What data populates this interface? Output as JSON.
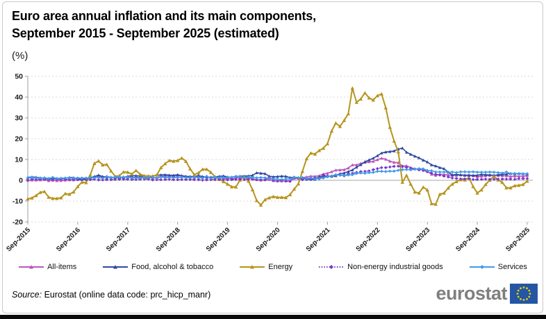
{
  "page": {
    "title_line1": "Euro area annual inflation and its main components,",
    "title_line2": "September 2015 - September 2025 (estimated)",
    "unit": "(%)"
  },
  "footer": {
    "source_prefix": "Source:",
    "source_text": " Eurostat (online data code: prc_hicp_manr)",
    "logo_text": "eurostat"
  },
  "chart_data": {
    "type": "line",
    "title": "Euro area annual inflation and its main components, September 2015 - September 2025 (estimated)",
    "xlabel": "",
    "ylabel": "(%)",
    "ylim": [
      -20,
      50
    ],
    "y_ticks": [
      50,
      40,
      30,
      20,
      10,
      0,
      -10,
      -20
    ],
    "x_tick_labels": [
      "Sep-2015",
      "Sep-2016",
      "Sep-2017",
      "Sep-2018",
      "Sep-2019",
      "Sep-2020",
      "Sep-2021",
      "Sep-2022",
      "Sep-2023",
      "Sep-2024",
      "Sep-2025"
    ],
    "x_frequency": "monthly",
    "x_start": "Sep-2015",
    "x_end": "Sep-2025",
    "grid": "horizontal dotted, solid zero line",
    "legend_position": "bottom",
    "colors": {
      "zero_line": "#c3c3c3",
      "gridline": "#dadada",
      "axis": "#9e9e9e",
      "tick_text": "#1a1a1a"
    },
    "series": [
      {
        "name": "All-items",
        "color": "#be54be",
        "marker": "triangle",
        "line_style": "solid",
        "values": [
          -0.1,
          0.1,
          0.1,
          0.2,
          0.3,
          -0.2,
          0.0,
          -0.2,
          -0.1,
          0.1,
          0.2,
          0.2,
          0.4,
          0.5,
          0.6,
          1.1,
          1.8,
          2.0,
          1.5,
          1.9,
          1.4,
          1.3,
          1.3,
          1.5,
          1.5,
          1.4,
          1.5,
          1.4,
          1.3,
          1.1,
          1.3,
          1.3,
          1.9,
          2.0,
          2.1,
          2.0,
          2.1,
          2.2,
          1.9,
          1.5,
          1.4,
          1.5,
          1.4,
          1.7,
          1.2,
          1.3,
          1.0,
          1.0,
          0.8,
          0.7,
          1.0,
          1.3,
          1.4,
          1.2,
          0.7,
          0.3,
          0.1,
          0.3,
          0.4,
          -0.2,
          -0.3,
          -0.3,
          -0.3,
          -0.3,
          0.9,
          0.9,
          1.3,
          1.6,
          2.0,
          1.9,
          2.2,
          3.0,
          3.4,
          4.1,
          4.9,
          5.0,
          5.1,
          5.9,
          7.4,
          7.4,
          8.1,
          8.6,
          8.9,
          9.1,
          9.9,
          10.6,
          10.1,
          9.2,
          8.6,
          8.5,
          6.9,
          7.0,
          6.1,
          5.5,
          5.3,
          5.2,
          4.3,
          2.9,
          2.4,
          2.9,
          2.8,
          2.6,
          2.4,
          2.4,
          2.6,
          2.5,
          2.6,
          2.2,
          1.7,
          2.0,
          2.2,
          2.4,
          2.5,
          2.3,
          2.2,
          2.2,
          1.9,
          2.0,
          2.0,
          2.0,
          2.2
        ]
      },
      {
        "name": "Food, alcohol & tobacco",
        "color": "#2e4a9e",
        "marker": "triangle",
        "line_style": "solid",
        "values": [
          1.4,
          1.6,
          1.5,
          1.2,
          1.0,
          0.6,
          0.8,
          0.8,
          0.9,
          0.9,
          1.4,
          1.3,
          0.7,
          0.4,
          0.7,
          1.2,
          1.8,
          2.5,
          1.8,
          1.5,
          1.5,
          1.4,
          1.4,
          1.4,
          1.9,
          2.3,
          2.2,
          2.1,
          1.9,
          1.0,
          2.1,
          2.5,
          2.6,
          2.7,
          2.5,
          2.4,
          2.7,
          2.2,
          1.9,
          1.8,
          1.8,
          2.3,
          1.8,
          1.5,
          1.5,
          1.6,
          1.9,
          2.1,
          1.6,
          1.5,
          1.9,
          2.0,
          2.1,
          2.1,
          2.4,
          3.6,
          3.4,
          3.2,
          2.0,
          1.7,
          1.8,
          2.0,
          1.9,
          1.3,
          1.5,
          1.3,
          1.1,
          0.6,
          0.5,
          0.5,
          1.6,
          2.0,
          2.0,
          1.9,
          2.2,
          3.2,
          3.5,
          4.2,
          5.0,
          6.3,
          7.5,
          8.9,
          9.8,
          10.6,
          11.8,
          13.1,
          13.6,
          13.8,
          14.1,
          15.0,
          15.5,
          13.5,
          12.5,
          11.6,
          10.8,
          9.7,
          8.8,
          7.4,
          6.9,
          6.1,
          5.6,
          3.9,
          2.6,
          2.8,
          2.6,
          2.4,
          2.3,
          2.4,
          2.4,
          2.9,
          2.7,
          2.6,
          2.3,
          2.7,
          2.9,
          3.0,
          3.3,
          3.1,
          3.3,
          3.2,
          3.0
        ]
      },
      {
        "name": "Energy",
        "color": "#b6941e",
        "marker": "triangle",
        "line_style": "solid",
        "values": [
          -8.9,
          -8.5,
          -7.3,
          -5.8,
          -5.4,
          -8.1,
          -8.7,
          -8.7,
          -8.4,
          -6.4,
          -6.7,
          -5.6,
          -3.0,
          -0.9,
          -1.1,
          2.6,
          8.1,
          9.3,
          7.4,
          7.6,
          4.5,
          1.9,
          2.2,
          4.0,
          3.9,
          3.0,
          4.7,
          2.9,
          2.2,
          2.1,
          2.0,
          2.6,
          6.1,
          8.0,
          9.5,
          9.2,
          9.5,
          10.7,
          9.1,
          5.5,
          2.7,
          3.6,
          5.3,
          5.3,
          3.8,
          1.7,
          0.5,
          -0.6,
          -1.8,
          -3.1,
          -3.2,
          0.2,
          1.9,
          -0.3,
          -4.5,
          -9.7,
          -11.9,
          -9.3,
          -8.4,
          -7.8,
          -8.2,
          -8.2,
          -8.3,
          -6.9,
          -4.2,
          -1.7,
          4.3,
          10.4,
          13.1,
          12.6,
          14.3,
          15.4,
          17.6,
          23.7,
          27.5,
          25.9,
          28.8,
          32.0,
          44.3,
          37.5,
          39.1,
          42.0,
          39.6,
          38.6,
          40.7,
          41.5,
          34.9,
          25.5,
          18.9,
          13.7,
          -0.9,
          2.4,
          -1.8,
          -5.6,
          -6.1,
          -3.3,
          -4.6,
          -11.2,
          -11.5,
          -6.7,
          -6.1,
          -3.7,
          -1.8,
          -0.6,
          0.3,
          0.2,
          1.2,
          -3.0,
          -6.1,
          -4.6,
          -2.0,
          0.1,
          1.9,
          0.2,
          -1.0,
          -3.6,
          -3.6,
          -2.6,
          -2.4,
          -2.0,
          -0.4
        ]
      },
      {
        "name": "Non-energy industrial goods",
        "color": "#7636c8",
        "marker": "diamond",
        "line_style": "dotted",
        "values": [
          0.3,
          0.6,
          0.5,
          0.5,
          0.7,
          0.7,
          0.5,
          0.5,
          0.5,
          0.4,
          0.4,
          0.3,
          0.3,
          0.3,
          0.3,
          0.3,
          0.5,
          0.2,
          0.2,
          0.3,
          0.3,
          0.4,
          0.5,
          0.5,
          0.5,
          0.4,
          0.4,
          0.5,
          0.6,
          0.6,
          0.2,
          0.3,
          0.3,
          0.4,
          0.5,
          0.3,
          0.3,
          0.4,
          0.4,
          0.4,
          0.3,
          0.3,
          0.1,
          0.2,
          0.3,
          0.3,
          0.4,
          0.3,
          0.2,
          0.3,
          0.4,
          0.5,
          0.3,
          0.5,
          0.5,
          0.3,
          0.2,
          0.2,
          1.6,
          -0.1,
          -0.3,
          -0.1,
          -0.3,
          -0.5,
          1.5,
          1.0,
          0.3,
          0.4,
          0.7,
          1.2,
          0.7,
          2.6,
          2.1,
          2.0,
          2.4,
          2.9,
          2.1,
          3.1,
          3.4,
          3.8,
          4.2,
          4.3,
          4.5,
          5.1,
          5.6,
          6.1,
          6.1,
          6.4,
          6.7,
          6.8,
          6.6,
          6.2,
          5.8,
          5.5,
          5.0,
          4.7,
          4.1,
          3.5,
          2.9,
          2.5,
          2.0,
          1.6,
          1.1,
          0.9,
          0.7,
          0.7,
          0.8,
          0.4,
          0.4,
          0.5,
          0.6,
          0.5,
          0.5,
          0.6,
          0.6,
          0.6,
          0.6,
          0.5,
          0.8,
          0.8,
          0.8
        ]
      },
      {
        "name": "Services",
        "color": "#3d9be9",
        "marker": "diamond",
        "line_style": "solid",
        "values": [
          1.2,
          1.3,
          1.2,
          1.1,
          1.2,
          0.9,
          1.4,
          0.9,
          1.0,
          1.1,
          1.2,
          1.1,
          1.1,
          1.1,
          1.1,
          1.3,
          1.2,
          1.3,
          1.0,
          1.8,
          1.3,
          1.6,
          1.5,
          1.6,
          1.5,
          1.2,
          1.2,
          1.2,
          1.2,
          1.3,
          1.5,
          1.0,
          1.6,
          1.3,
          1.4,
          1.3,
          1.3,
          1.5,
          1.3,
          1.3,
          1.6,
          1.4,
          1.1,
          1.9,
          1.0,
          1.6,
          1.2,
          1.3,
          1.5,
          1.5,
          1.9,
          1.8,
          1.5,
          1.6,
          1.3,
          1.2,
          1.3,
          1.2,
          0.9,
          0.7,
          0.5,
          0.4,
          0.6,
          0.7,
          1.4,
          1.2,
          1.3,
          0.9,
          1.1,
          0.7,
          0.9,
          1.1,
          1.7,
          2.1,
          2.7,
          2.4,
          2.3,
          2.5,
          2.7,
          3.3,
          3.5,
          3.4,
          3.7,
          3.8,
          4.3,
          4.3,
          4.2,
          4.4,
          4.4,
          4.8,
          5.1,
          5.2,
          5.0,
          5.4,
          5.6,
          5.5,
          4.7,
          4.6,
          4.0,
          4.0,
          4.0,
          3.9,
          4.0,
          3.7,
          4.1,
          4.1,
          4.0,
          4.1,
          3.9,
          3.9,
          3.9,
          4.0,
          3.9,
          3.7,
          3.5,
          4.0,
          3.2,
          3.3,
          3.2,
          3.1,
          3.2
        ]
      }
    ]
  }
}
